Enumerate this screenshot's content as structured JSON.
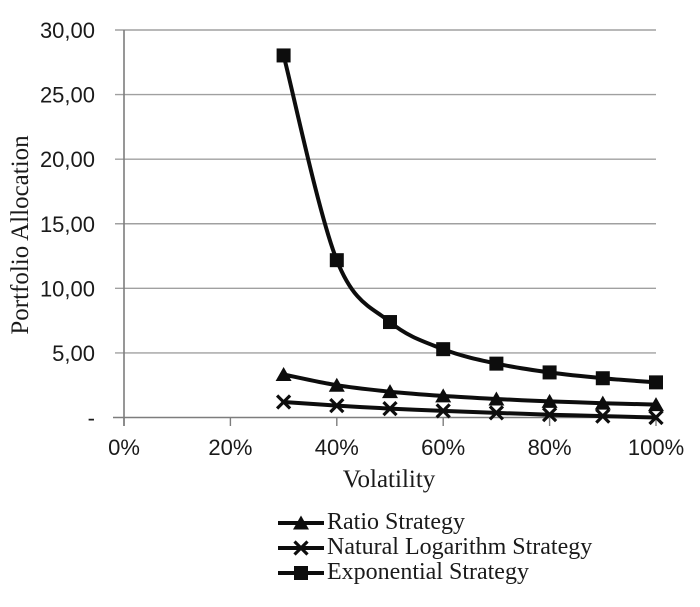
{
  "chart_data": {
    "type": "line",
    "title": "",
    "xlabel": "Volatility",
    "ylabel": "Portfolio Allocation",
    "xlim": [
      0,
      100
    ],
    "ylim": [
      0,
      30
    ],
    "grid": "horizontal-only",
    "legend_position": "bottom",
    "smoothed_lines": true,
    "x_ticks": [
      {
        "v": 0,
        "label": "0%"
      },
      {
        "v": 20,
        "label": "20%"
      },
      {
        "v": 40,
        "label": "40%"
      },
      {
        "v": 60,
        "label": "60%"
      },
      {
        "v": 80,
        "label": "80%"
      },
      {
        "v": 100,
        "label": "100%"
      }
    ],
    "y_ticks": [
      {
        "v": 30,
        "label": "30,00"
      },
      {
        "v": 25,
        "label": "25,00"
      },
      {
        "v": 20,
        "label": "20,00"
      },
      {
        "v": 15,
        "label": "15,00"
      },
      {
        "v": 10,
        "label": "10,00"
      },
      {
        "v": 5,
        "label": "5,00"
      },
      {
        "v": 0,
        "label": "-"
      }
    ],
    "x_percent": [
      30,
      40,
      50,
      60,
      70,
      80,
      90,
      100
    ],
    "series": [
      {
        "name": "Ratio Strategy",
        "marker": "triangle",
        "values": [
          3.33,
          2.5,
          2.0,
          1.67,
          1.43,
          1.25,
          1.11,
          1.0
        ]
      },
      {
        "name": "Natural Logarithm Strategy",
        "marker": "x",
        "values": [
          1.2,
          0.92,
          0.69,
          0.51,
          0.36,
          0.22,
          0.11,
          0.0
        ]
      },
      {
        "name": "Exponential Strategy",
        "marker": "square",
        "values": [
          28.03,
          12.18,
          7.39,
          5.29,
          4.17,
          3.49,
          3.04,
          2.72
        ]
      }
    ],
    "colors": {
      "series": "#0d0d0d",
      "gridline": "#a0a0a0",
      "axis": "#7d7d7d",
      "text": "#1a1a1a",
      "background": "#ffffff"
    }
  }
}
